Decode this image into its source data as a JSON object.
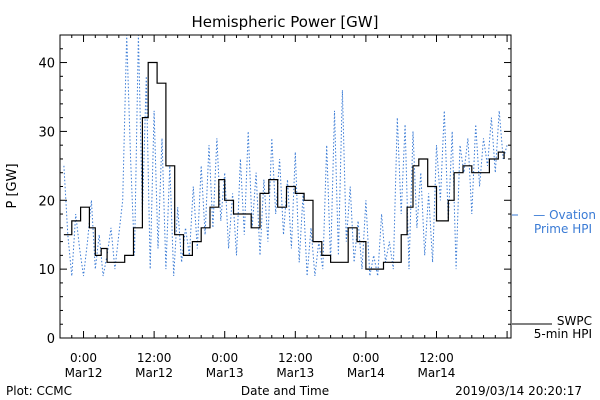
{
  "chart_data": {
    "type": "line",
    "title": "Hemispheric Power [GW]",
    "xlabel": "Date and Time",
    "ylabel": "P [GW]",
    "ylim": [
      0,
      44
    ],
    "yticks": [
      0,
      10,
      20,
      30,
      40
    ],
    "xlim": [
      "2019-03-11 20:00",
      "2019-03-15 00:40"
    ],
    "xticks": [
      {
        "time": "2019-03-12 00:00",
        "line1": "0:00",
        "line2": "Mar12"
      },
      {
        "time": "2019-03-12 12:00",
        "line1": "12:00",
        "line2": "Mar12"
      },
      {
        "time": "2019-03-13 00:00",
        "line1": "0:00",
        "line2": "Mar13"
      },
      {
        "time": "2019-03-13 12:00",
        "line1": "12:00",
        "line2": "Mar13"
      },
      {
        "time": "2019-03-14 00:00",
        "line1": "0:00",
        "line2": "Mar14"
      },
      {
        "time": "2019-03-14 12:00",
        "line1": "12:00",
        "line2": "Mar14"
      }
    ],
    "legend": {
      "placement": "right",
      "entries": [
        {
          "series": "Ovation Prime HPI",
          "lines": [
            "— Ovation",
            "Prime HPI"
          ],
          "color": "#3a7bd5",
          "style": "dotted"
        },
        {
          "series": "SWPC 5-min HPI",
          "lines": [
            "SWPC",
            "5-min HPI"
          ],
          "color": "#000000",
          "style": "solid"
        }
      ]
    },
    "grid": false,
    "series": [
      {
        "name": "SWPC 5-min HPI",
        "color": "#000000",
        "style": "solid",
        "data": [
          [
            "2019-03-11 20:40",
            15
          ],
          [
            "2019-03-11 22:00",
            17
          ],
          [
            "2019-03-11 23:30",
            19
          ],
          [
            "2019-03-12 01:00",
            16
          ],
          [
            "2019-03-12 02:00",
            12
          ],
          [
            "2019-03-12 03:00",
            13
          ],
          [
            "2019-03-12 04:00",
            11
          ],
          [
            "2019-03-12 05:30",
            11
          ],
          [
            "2019-03-12 07:00",
            12
          ],
          [
            "2019-03-12 08:30",
            16
          ],
          [
            "2019-03-12 10:00",
            32
          ],
          [
            "2019-03-12 11:00",
            40
          ],
          [
            "2019-03-12 12:30",
            37
          ],
          [
            "2019-03-12 14:00",
            25
          ],
          [
            "2019-03-12 15:30",
            15
          ],
          [
            "2019-03-12 17:00",
            12
          ],
          [
            "2019-03-12 18:30",
            14
          ],
          [
            "2019-03-12 20:00",
            16
          ],
          [
            "2019-03-12 21:30",
            19
          ],
          [
            "2019-03-12 23:00",
            23
          ],
          [
            "2019-03-13 00:00",
            20
          ],
          [
            "2019-03-13 01:30",
            18
          ],
          [
            "2019-03-13 03:00",
            18
          ],
          [
            "2019-03-13 04:30",
            16
          ],
          [
            "2019-03-13 06:00",
            21
          ],
          [
            "2019-03-13 07:30",
            23
          ],
          [
            "2019-03-13 09:00",
            19
          ],
          [
            "2019-03-13 10:30",
            22
          ],
          [
            "2019-03-13 12:00",
            21
          ],
          [
            "2019-03-13 13:30",
            20
          ],
          [
            "2019-03-13 15:00",
            14
          ],
          [
            "2019-03-13 16:30",
            12
          ],
          [
            "2019-03-13 18:00",
            11
          ],
          [
            "2019-03-13 19:30",
            11
          ],
          [
            "2019-03-13 21:00",
            16
          ],
          [
            "2019-03-13 22:30",
            14
          ],
          [
            "2019-03-14 00:00",
            10
          ],
          [
            "2019-03-14 01:30",
            10
          ],
          [
            "2019-03-14 03:00",
            11
          ],
          [
            "2019-03-14 04:30",
            11
          ],
          [
            "2019-03-14 06:00",
            15
          ],
          [
            "2019-03-14 07:00",
            19
          ],
          [
            "2019-03-14 08:00",
            25
          ],
          [
            "2019-03-14 09:00",
            26
          ],
          [
            "2019-03-14 10:30",
            22
          ],
          [
            "2019-03-14 12:00",
            17
          ],
          [
            "2019-03-14 13:00",
            17
          ],
          [
            "2019-03-14 14:00",
            20
          ],
          [
            "2019-03-14 15:00",
            24
          ],
          [
            "2019-03-14 16:30",
            25
          ],
          [
            "2019-03-14 18:00",
            24
          ],
          [
            "2019-03-14 19:30",
            24
          ],
          [
            "2019-03-14 21:00",
            26
          ],
          [
            "2019-03-14 22:30",
            27
          ],
          [
            "2019-03-14 23:30",
            26
          ]
        ]
      },
      {
        "name": "Ovation Prime HPI",
        "color": "#3a7bd5",
        "style": "dotted",
        "data": [
          [
            "2019-03-11 20:40",
            25
          ],
          [
            "2019-03-11 21:20",
            15
          ],
          [
            "2019-03-11 22:00",
            9
          ],
          [
            "2019-03-11 22:40",
            18
          ],
          [
            "2019-03-11 23:20",
            13
          ],
          [
            "2019-03-12 00:00",
            9
          ],
          [
            "2019-03-12 00:40",
            14
          ],
          [
            "2019-03-12 01:20",
            20
          ],
          [
            "2019-03-12 02:00",
            10
          ],
          [
            "2019-03-12 02:40",
            15
          ],
          [
            "2019-03-12 03:20",
            9
          ],
          [
            "2019-03-12 04:00",
            12
          ],
          [
            "2019-03-12 04:40",
            16
          ],
          [
            "2019-03-12 05:20",
            10
          ],
          [
            "2019-03-12 06:00",
            15
          ],
          [
            "2019-03-12 06:40",
            20
          ],
          [
            "2019-03-12 07:20",
            44
          ],
          [
            "2019-03-12 08:00",
            26
          ],
          [
            "2019-03-12 08:40",
            12
          ],
          [
            "2019-03-12 09:20",
            44
          ],
          [
            "2019-03-12 10:00",
            18
          ],
          [
            "2019-03-12 10:40",
            38
          ],
          [
            "2019-03-12 11:20",
            10
          ],
          [
            "2019-03-12 12:00",
            33
          ],
          [
            "2019-03-12 12:40",
            13
          ],
          [
            "2019-03-12 13:20",
            29
          ],
          [
            "2019-03-12 14:00",
            10
          ],
          [
            "2019-03-12 14:40",
            25
          ],
          [
            "2019-03-12 15:20",
            9
          ],
          [
            "2019-03-12 16:00",
            19
          ],
          [
            "2019-03-12 16:40",
            11
          ],
          [
            "2019-03-12 17:20",
            16
          ],
          [
            "2019-03-12 18:00",
            12
          ],
          [
            "2019-03-12 18:40",
            22
          ],
          [
            "2019-03-12 19:20",
            13
          ],
          [
            "2019-03-12 20:00",
            25
          ],
          [
            "2019-03-12 20:40",
            15
          ],
          [
            "2019-03-12 21:20",
            28
          ],
          [
            "2019-03-12 22:00",
            16
          ],
          [
            "2019-03-12 22:40",
            29
          ],
          [
            "2019-03-12 23:20",
            17
          ],
          [
            "2019-03-13 00:00",
            24
          ],
          [
            "2019-03-13 00:40",
            13
          ],
          [
            "2019-03-13 01:20",
            21
          ],
          [
            "2019-03-13 02:00",
            12
          ],
          [
            "2019-03-13 02:40",
            26
          ],
          [
            "2019-03-13 03:20",
            15
          ],
          [
            "2019-03-13 04:00",
            30
          ],
          [
            "2019-03-13 04:40",
            16
          ],
          [
            "2019-03-13 05:20",
            24
          ],
          [
            "2019-03-13 06:00",
            12
          ],
          [
            "2019-03-13 06:40",
            23
          ],
          [
            "2019-03-13 07:20",
            14
          ],
          [
            "2019-03-13 08:00",
            29
          ],
          [
            "2019-03-13 08:40",
            18
          ],
          [
            "2019-03-13 09:20",
            26
          ],
          [
            "2019-03-13 10:00",
            15
          ],
          [
            "2019-03-13 10:40",
            23
          ],
          [
            "2019-03-13 11:20",
            13
          ],
          [
            "2019-03-13 12:00",
            27
          ],
          [
            "2019-03-13 12:40",
            11
          ],
          [
            "2019-03-13 13:20",
            21
          ],
          [
            "2019-03-13 14:00",
            9
          ],
          [
            "2019-03-13 14:40",
            16
          ],
          [
            "2019-03-13 15:20",
            9
          ],
          [
            "2019-03-13 16:00",
            14
          ],
          [
            "2019-03-13 16:40",
            10
          ],
          [
            "2019-03-13 17:20",
            28
          ],
          [
            "2019-03-13 18:00",
            11
          ],
          [
            "2019-03-13 18:40",
            33
          ],
          [
            "2019-03-13 19:20",
            12
          ],
          [
            "2019-03-13 20:00",
            36
          ],
          [
            "2019-03-13 20:40",
            14
          ],
          [
            "2019-03-13 21:20",
            22
          ],
          [
            "2019-03-13 22:00",
            11
          ],
          [
            "2019-03-13 22:40",
            17
          ],
          [
            "2019-03-13 23:20",
            10
          ],
          [
            "2019-03-14 00:00",
            20
          ],
          [
            "2019-03-14 00:40",
            9
          ],
          [
            "2019-03-14 01:20",
            12
          ],
          [
            "2019-03-14 02:00",
            9
          ],
          [
            "2019-03-14 02:40",
            18
          ],
          [
            "2019-03-14 03:20",
            11
          ],
          [
            "2019-03-14 04:00",
            14
          ],
          [
            "2019-03-14 04:40",
            10
          ],
          [
            "2019-03-14 05:20",
            32
          ],
          [
            "2019-03-14 06:00",
            18
          ],
          [
            "2019-03-14 06:40",
            31
          ],
          [
            "2019-03-14 07:20",
            10
          ],
          [
            "2019-03-14 08:00",
            30
          ],
          [
            "2019-03-14 08:40",
            16
          ],
          [
            "2019-03-14 09:20",
            24
          ],
          [
            "2019-03-14 10:00",
            12
          ],
          [
            "2019-03-14 10:40",
            21
          ],
          [
            "2019-03-14 11:20",
            11
          ],
          [
            "2019-03-14 12:00",
            28
          ],
          [
            "2019-03-14 12:40",
            20
          ],
          [
            "2019-03-14 13:20",
            33
          ],
          [
            "2019-03-14 14:00",
            17
          ],
          [
            "2019-03-14 14:40",
            30
          ],
          [
            "2019-03-14 15:20",
            10
          ],
          [
            "2019-03-14 16:00",
            28
          ],
          [
            "2019-03-14 16:40",
            24
          ],
          [
            "2019-03-14 17:20",
            29
          ],
          [
            "2019-03-14 18:00",
            18
          ],
          [
            "2019-03-14 18:40",
            31
          ],
          [
            "2019-03-14 19:20",
            22
          ],
          [
            "2019-03-14 20:00",
            29
          ],
          [
            "2019-03-14 20:40",
            25
          ],
          [
            "2019-03-14 21:20",
            32
          ],
          [
            "2019-03-14 22:00",
            24
          ],
          [
            "2019-03-14 22:40",
            33
          ],
          [
            "2019-03-14 23:20",
            26
          ],
          [
            "2019-03-15 00:00",
            28
          ]
        ]
      }
    ]
  },
  "footer": {
    "plot_credit": "Plot: CCMC",
    "timestamp": "2019/03/14 20:20:17"
  }
}
